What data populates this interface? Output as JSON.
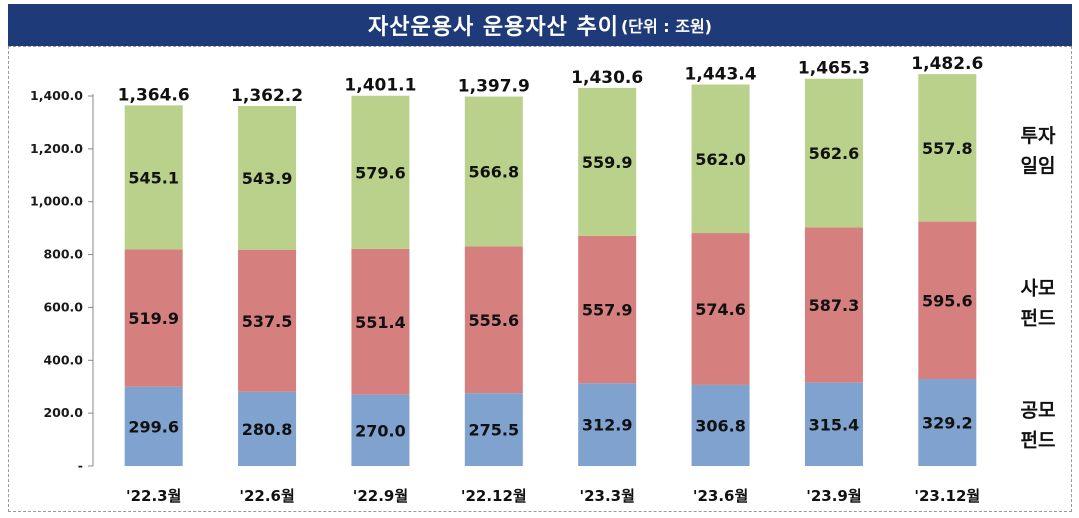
{
  "header": {
    "title": "자산운용사 운용자산 추이",
    "unit": "(단위 : 조원)"
  },
  "chart_data": {
    "type": "bar",
    "stacked": true,
    "title": "자산운용사 운용자산 추이",
    "unit": "(단위 : 조원)",
    "categories": [
      "'22.3월",
      "'22.6월",
      "'22.9월",
      "'22.12월",
      "'23.3월",
      "'23.6월",
      "'23.9월",
      "'23.12월"
    ],
    "series": [
      {
        "name": "공모 펀드",
        "legend_lines": [
          "공모",
          "펀드"
        ],
        "color": "#7fa2cf",
        "values": [
          299.6,
          280.8,
          270.0,
          275.5,
          312.9,
          306.8,
          315.4,
          329.2
        ]
      },
      {
        "name": "사모 펀드",
        "legend_lines": [
          "사모",
          "펀드"
        ],
        "color": "#d67f7f",
        "values": [
          519.9,
          537.5,
          551.4,
          555.6,
          557.9,
          574.6,
          587.3,
          595.6
        ]
      },
      {
        "name": "투자 일임",
        "legend_lines": [
          "투자",
          "일임"
        ],
        "color": "#b9d18a",
        "values": [
          545.1,
          543.9,
          579.6,
          566.8,
          559.9,
          562.0,
          562.6,
          557.8
        ]
      }
    ],
    "totals": [
      1364.6,
      1362.2,
      1401.1,
      1397.9,
      1430.6,
      1443.4,
      1465.3,
      1482.6
    ],
    "ylim": [
      0,
      1400
    ],
    "yticks": [
      0,
      200,
      400,
      600,
      800,
      1000,
      1200,
      1400
    ],
    "ytick_labels": [
      "-",
      "200.0",
      "400.0",
      "600.0",
      "800.0",
      "1,000.0",
      "1,200.0",
      "1,400.0"
    ],
    "legend_position": "right",
    "grid": false
  }
}
